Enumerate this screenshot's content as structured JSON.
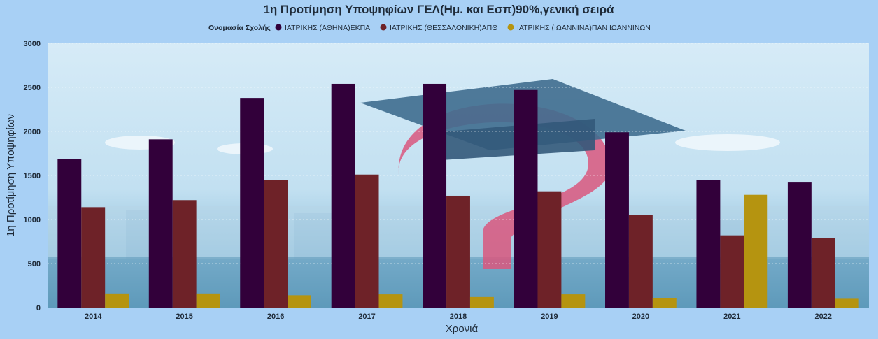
{
  "chart_data": {
    "type": "bar",
    "title": "1η Προτίμηση Υποψηφίων ΓΕΛ(Ημ. και Εσπ)90%,γενική σειρά",
    "legend_title": "Ονομασία Σχολής",
    "legend_position": "top-center",
    "xlabel": "Χρονιά",
    "ylabel": "1η Προτίμηση Υποψηφίων",
    "ylim": [
      0,
      3000
    ],
    "yticks": [
      "0",
      "500",
      "1000",
      "1500",
      "2000",
      "2500",
      "3000"
    ],
    "grid": true,
    "categories": [
      "2014",
      "2015",
      "2016",
      "2017",
      "2018",
      "2019",
      "2020",
      "2021",
      "2022"
    ],
    "series": [
      {
        "name": "ΙΑΤΡΙΚΗΣ (ΑΘΗΝΑ)ΕΚΠΑ",
        "color": "#32003a",
        "values": [
          1690,
          1910,
          2380,
          2540,
          2540,
          2470,
          1990,
          1450,
          1420
        ]
      },
      {
        "name": "ΙΑΤΡΙΚΗΣ (ΘΕΣΣΑΛΟΝΙΚΗ)ΑΠΘ",
        "color": "#6e2228",
        "values": [
          1140,
          1220,
          1450,
          1510,
          1270,
          1320,
          1050,
          820,
          790
        ]
      },
      {
        "name": "ΙΑΤΡΙΚΗΣ (ΙΩΑΝΝΙΝΑ)ΠΑΝ ΙΩΑΝΝΙΝΩΝ",
        "color": "#b59410",
        "values": [
          160,
          160,
          140,
          150,
          120,
          150,
          110,
          1280,
          100
        ]
      }
    ]
  }
}
